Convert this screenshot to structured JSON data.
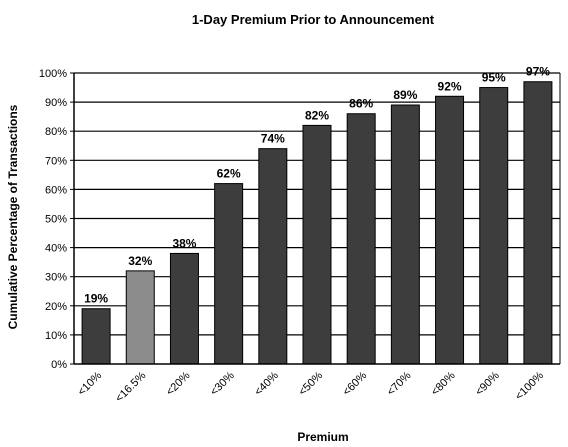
{
  "chart_data": {
    "type": "bar",
    "title": "1-Day Premium Prior to Announcement",
    "xlabel": "Premium",
    "ylabel": "Cumulative Percentage of Transactions",
    "categories": [
      "<10%",
      "<16.5%",
      "<20%",
      "<30%",
      "<40%",
      "<50%",
      "<60%",
      "<70%",
      "<80%",
      "<90%",
      "<100%"
    ],
    "values": [
      19,
      32,
      38,
      62,
      74,
      82,
      86,
      89,
      92,
      95,
      97
    ],
    "value_labels": [
      "19%",
      "32%",
      "38%",
      "62%",
      "74%",
      "82%",
      "86%",
      "89%",
      "92%",
      "95%",
      "97%"
    ],
    "ylim": [
      0,
      100
    ],
    "yticks": [
      "0%",
      "10%",
      "20%",
      "30%",
      "40%",
      "50%",
      "60%",
      "70%",
      "80%",
      "90%",
      "100%"
    ],
    "grid": true,
    "colors": {
      "bar": "#3d3d3d",
      "highlight": "#8c8c8c",
      "grid": "#000000"
    },
    "highlight_index": 1
  }
}
